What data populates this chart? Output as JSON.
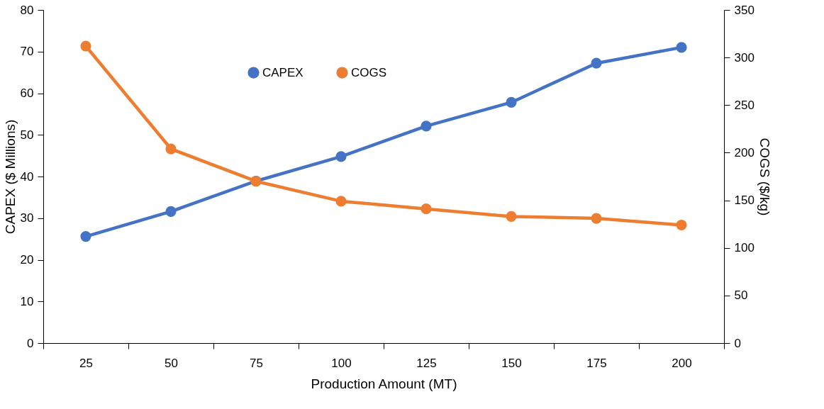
{
  "chart_data": {
    "type": "line",
    "xlabel": "Production Amount (MT)",
    "ylabel": "CAPEX ($ Millions)",
    "y2label": "COGS ($/kg)",
    "categories": [
      "25",
      "50",
      "75",
      "100",
      "125",
      "150",
      "175",
      "200"
    ],
    "series": [
      {
        "name": "CAPEX",
        "color": "#4472c4",
        "values": [
          25.6,
          31.6,
          38.9,
          44.8,
          52.1,
          57.8,
          67.2,
          71.0
        ]
      },
      {
        "name": "COGS",
        "color": "#ed7d31",
        "axis": "y2",
        "values": [
          312,
          204,
          170,
          149,
          141,
          133,
          131,
          124
        ]
      }
    ],
    "ylim": [
      0,
      80
    ],
    "yticks": [
      0,
      10,
      20,
      30,
      40,
      50,
      60,
      70,
      80
    ],
    "y2lim": [
      0,
      350
    ],
    "y2ticks": [
      0,
      50,
      100,
      150,
      200,
      250,
      300,
      350
    ],
    "grid": false,
    "legend": "top",
    "marker": "circle",
    "line_style": "solid"
  }
}
